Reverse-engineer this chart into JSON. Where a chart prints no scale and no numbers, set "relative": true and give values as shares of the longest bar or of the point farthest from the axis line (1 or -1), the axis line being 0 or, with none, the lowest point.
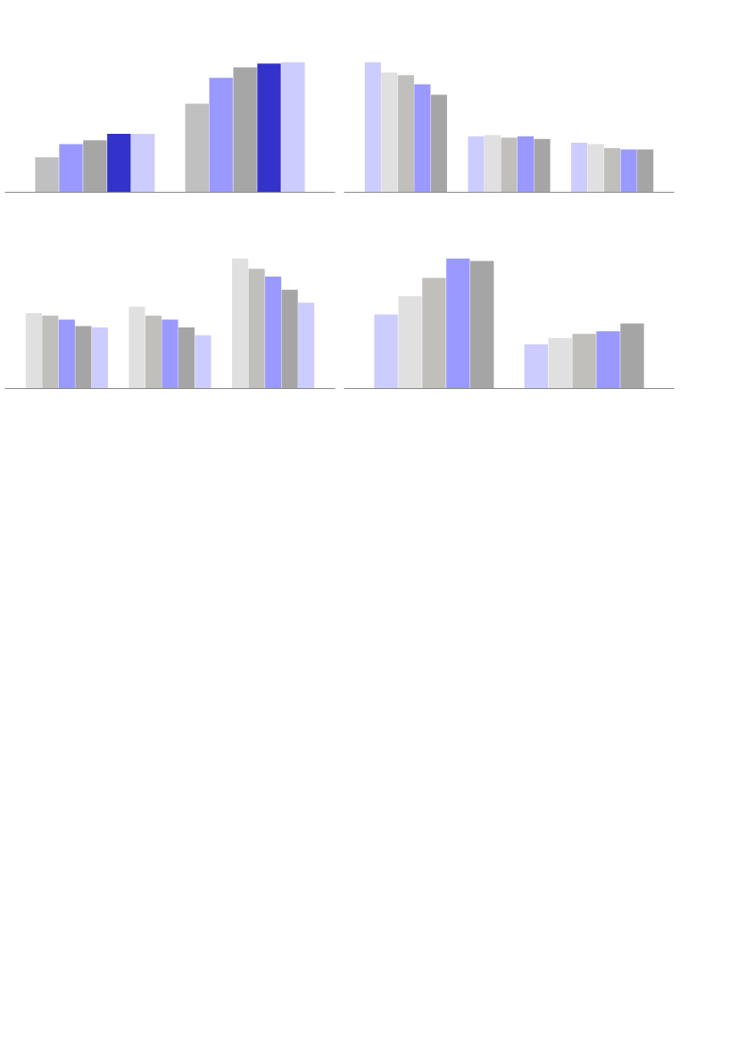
{
  "chart_data": [
    {
      "type": "bar",
      "relative": true,
      "categories": [
        null,
        null
      ],
      "series": [
        {
          "color": "#c0c0c0",
          "values": [
            0.27,
            0.68
          ]
        },
        {
          "color": "#9999ff",
          "values": [
            0.37,
            0.88
          ]
        },
        {
          "color": "#a6a6a6",
          "values": [
            0.4,
            0.96
          ]
        },
        {
          "color": "#3333cc",
          "values": [
            0.45,
            0.99
          ]
        },
        {
          "color": "#ccccff",
          "values": [
            0.45,
            1
          ]
        }
      ]
    },
    {
      "type": "bar",
      "relative": true,
      "categories": [
        null,
        null,
        null
      ],
      "series": [
        {
          "color": "#ccccff",
          "values": [
            1,
            0.43,
            0.38
          ]
        },
        {
          "color": "#e0e0e0",
          "values": [
            0.92,
            0.44,
            0.37
          ]
        },
        {
          "color": "#c0bfbb",
          "values": [
            0.9,
            0.42,
            0.34
          ]
        },
        {
          "color": "#9999ff",
          "values": [
            0.83,
            0.43,
            0.33
          ]
        },
        {
          "color": "#a6a5a6",
          "values": [
            0.75,
            0.41,
            0.33
          ]
        }
      ]
    },
    {
      "type": "bar",
      "relative": true,
      "categories": [
        null,
        null,
        null
      ],
      "series": [
        {
          "color": "#e0e0e0",
          "values": [
            0.58,
            0.63,
            1
          ]
        },
        {
          "color": "#c0bfbb",
          "values": [
            0.56,
            0.56,
            0.92
          ]
        },
        {
          "color": "#9999ff",
          "values": [
            0.53,
            0.53,
            0.86
          ]
        },
        {
          "color": "#a6a5a6",
          "values": [
            0.48,
            0.47,
            0.76
          ]
        },
        {
          "color": "#ccccff",
          "values": [
            0.47,
            0.41,
            0.66
          ]
        }
      ]
    },
    {
      "type": "bar",
      "relative": true,
      "categories": [
        null,
        null
      ],
      "series": [
        {
          "color": "#ccccff",
          "values": [
            0.57,
            0.34
          ]
        },
        {
          "color": "#e0e0e0",
          "values": [
            0.71,
            0.39
          ]
        },
        {
          "color": "#c0bfbb",
          "values": [
            0.85,
            0.42
          ]
        },
        {
          "color": "#9999ff",
          "values": [
            1,
            0.44
          ]
        },
        {
          "color": "#a6a5a6",
          "values": [
            0.98,
            0.5
          ]
        }
      ]
    }
  ]
}
